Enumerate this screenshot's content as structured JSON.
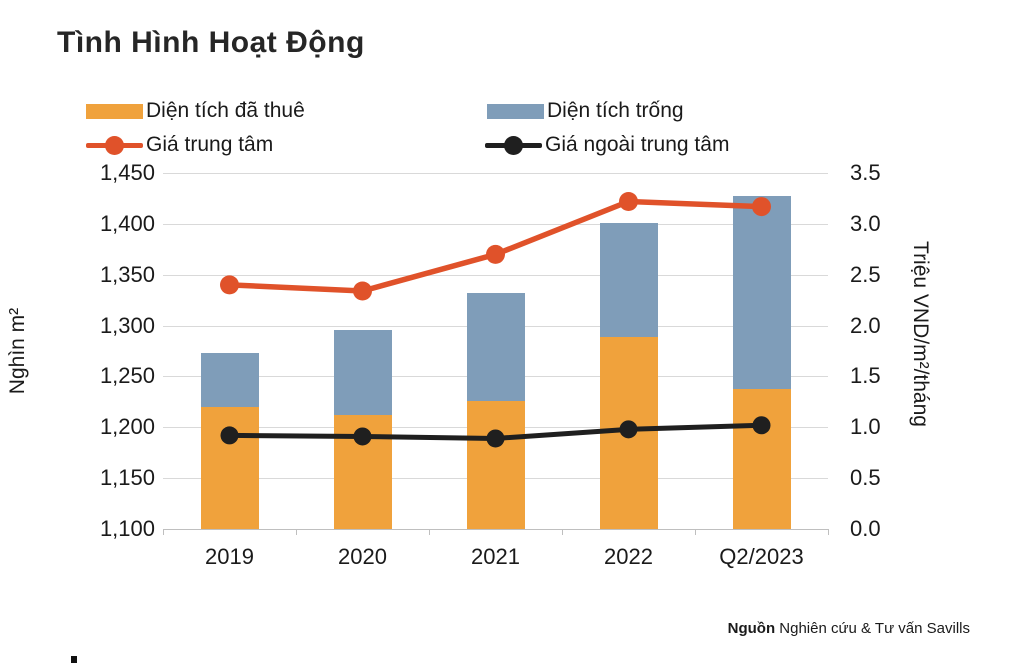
{
  "title": "Tình Hình Hoạt Động",
  "legend": {
    "items": [
      {
        "label": "Diện tích đã thuê",
        "marker": "swatch",
        "color": "#F0A23C"
      },
      {
        "label": "Diện tích trống",
        "marker": "swatch",
        "color": "#7F9DB9"
      },
      {
        "label": "Giá trung tâm",
        "marker": "line-dot",
        "color": "#E0522A"
      },
      {
        "label": "Giá ngoài trung tâm",
        "marker": "line-dot",
        "color": "#1F1F1F"
      }
    ]
  },
  "chart_data": {
    "type": "bar",
    "subtype": "stacked-bars-with-lines",
    "title": "Tình Hình Hoạt Động",
    "categories": [
      "2019",
      "2020",
      "2021",
      "2022",
      "Q2/2023"
    ],
    "bar_series": [
      {
        "name": "Diện tích đã thuê",
        "axis": "left",
        "color": "#F0A23C",
        "values": [
          1220,
          1212,
          1226,
          1289,
          1238
        ]
      },
      {
        "name": "Diện tích trống",
        "axis": "left",
        "color": "#7F9DB9",
        "values": [
          53,
          84,
          106,
          112,
          189
        ]
      }
    ],
    "bar_totals": [
      1273,
      1296,
      1332,
      1401,
      1427
    ],
    "line_series": [
      {
        "name": "Giá trung tâm",
        "axis": "right",
        "color": "#E0522A",
        "values": [
          2.4,
          2.34,
          2.7,
          3.22,
          3.17
        ]
      },
      {
        "name": "Giá ngoài trung tâm",
        "axis": "right",
        "color": "#1F1F1F",
        "values": [
          0.92,
          0.91,
          0.89,
          0.98,
          1.02
        ]
      }
    ],
    "left_axis": {
      "label": "Nghìn m²",
      "min": 1100,
      "max": 1450,
      "step": 50,
      "tick_labels": [
        "1,100",
        "1,150",
        "1,200",
        "1,250",
        "1,300",
        "1,350",
        "1,400",
        "1,450"
      ]
    },
    "right_axis": {
      "label": "Triệu VND/m²/tháng",
      "min": 0.0,
      "max": 3.5,
      "step": 0.5,
      "tick_labels": [
        "0.0",
        "0.5",
        "1.0",
        "1.5",
        "2.0",
        "2.5",
        "3.0",
        "3.5"
      ]
    },
    "grid": "horizontal",
    "legend_position": "top",
    "colors": {
      "leased_bar": "#F0A23C",
      "vacant_bar": "#7F9DB9",
      "central_line": "#E0522A",
      "noncentral_line": "#1F1F1F",
      "gridline": "#d9d9d9",
      "axis": "#bfbfbf"
    }
  },
  "source": {
    "label": "Nguồn",
    "text": " Nghiên cứu & Tư vấn Savills"
  }
}
